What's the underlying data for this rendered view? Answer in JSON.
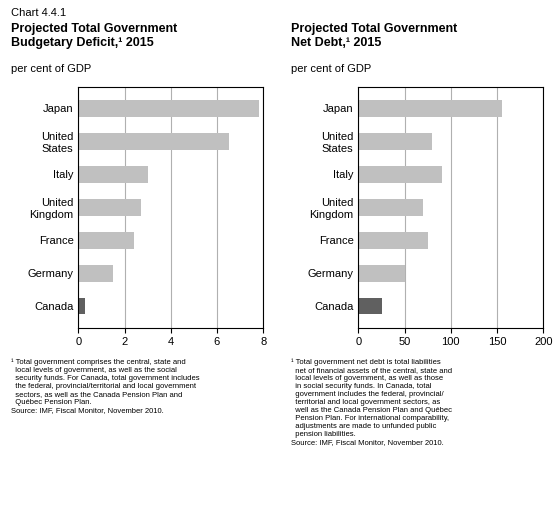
{
  "title": "Chart 4.4.1",
  "chart_data": [
    {
      "type": "bar",
      "orientation": "horizontal",
      "title": "Projected Total Government\nBudgetary Deficit,¹ 2015",
      "subtitle": "per cent of GDP",
      "categories": [
        "Japan",
        "United\nStates",
        "Italy",
        "United\nKingdom",
        "France",
        "Germany",
        "Canada"
      ],
      "values": [
        7.8,
        6.5,
        3.0,
        2.7,
        2.4,
        1.5,
        0.3
      ],
      "colors": [
        "#c0c0c0",
        "#c0c0c0",
        "#c0c0c0",
        "#c0c0c0",
        "#c0c0c0",
        "#c0c0c0",
        "#606060"
      ],
      "xlim": [
        0,
        8
      ],
      "xticks": [
        0,
        2,
        4,
        6,
        8
      ],
      "grid": true,
      "annotations": [
        "¹ Total government comprises the central, state and\n  local levels of government, as well as the social\n  security funds. For Canada, total government includes\n  the federal, provincial/territorial and local government\n  sectors, as well as the Canada Pension Plan and\n  Québec Pension Plan.\nSource: IMF, Fiscal Monitor, November 2010."
      ]
    },
    {
      "type": "bar",
      "orientation": "horizontal",
      "title": "Projected Total Government\nNet Debt,¹ 2015",
      "subtitle": "per cent of GDP",
      "categories": [
        "Japan",
        "United\nStates",
        "Italy",
        "United\nKingdom",
        "France",
        "Germany",
        "Canada"
      ],
      "values": [
        155,
        80,
        90,
        70,
        75,
        50,
        25
      ],
      "colors": [
        "#c0c0c0",
        "#c0c0c0",
        "#c0c0c0",
        "#c0c0c0",
        "#c0c0c0",
        "#c0c0c0",
        "#606060"
      ],
      "xlim": [
        0,
        200
      ],
      "xticks": [
        0,
        50,
        100,
        150,
        200
      ],
      "grid": true,
      "annotations": [
        "¹ Total government net debt is total liabilities\n  net of financial assets of the central, state and\n  local levels of government, as well as those\n  in social security funds. In Canada, total\n  government includes the federal, provincial/\n  territorial and local government sectors, as\n  well as the Canada Pension Plan and Québec\n  Pension Plan. For international comparability,\n  adjustments are made to unfunded public\n  pension liabilities.\nSource: IMF, Fiscal Monitor, November 2010."
      ]
    }
  ]
}
